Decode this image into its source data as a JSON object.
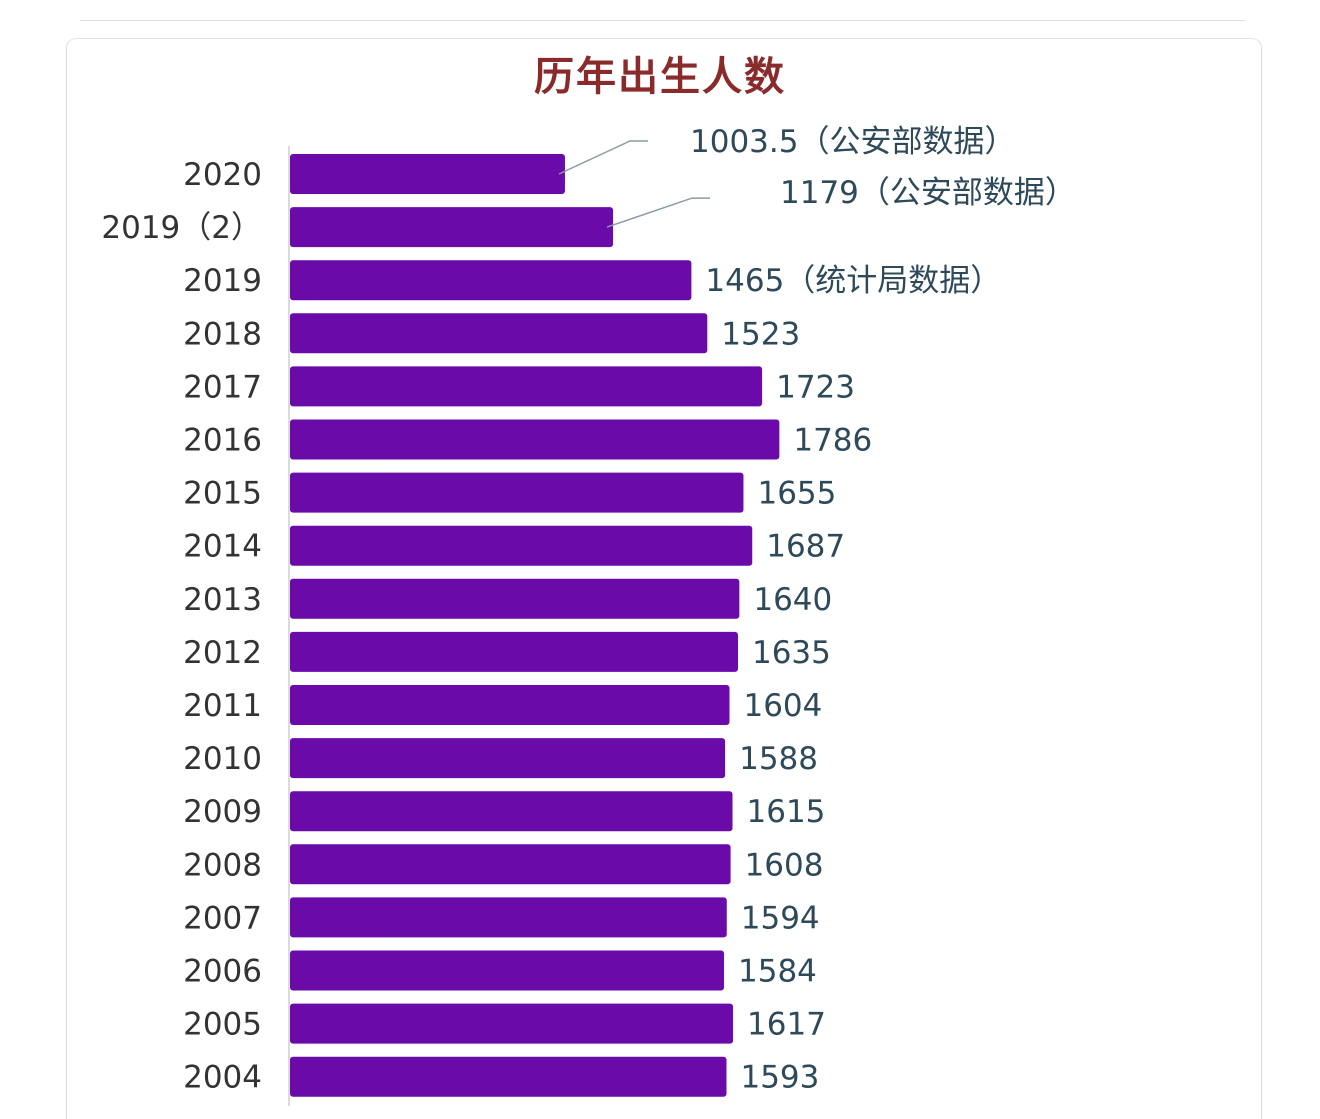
{
  "chart_data": {
    "type": "bar",
    "orientation": "horizontal",
    "title": "历年出生人数",
    "xlabel": "",
    "ylabel": "",
    "xlim": [
      0,
      2225
    ],
    "grid": false,
    "legend": "none",
    "bar_color": "#6a0aa8",
    "categories": [
      "2020",
      "2019（2）",
      "2019",
      "2018",
      "2017",
      "2016",
      "2015",
      "2014",
      "2013",
      "2012",
      "2011",
      "2010",
      "2009",
      "2008",
      "2007",
      "2006",
      "2005",
      "2004"
    ],
    "values": [
      1003.5,
      1179,
      1465,
      1523,
      1723,
      1786,
      1655,
      1687,
      1640,
      1635,
      1604,
      1588,
      1615,
      1608,
      1594,
      1584,
      1617,
      1593
    ],
    "data_labels": [
      "1003.5（公安部数据）",
      "1179（公安部数据）",
      "1465（统计局数据）",
      "1523",
      "1723",
      "1786",
      "1655",
      "1687",
      "1640",
      "1635",
      "1604",
      "1588",
      "1615",
      "1608",
      "1594",
      "1584",
      "1617",
      "1593"
    ]
  }
}
